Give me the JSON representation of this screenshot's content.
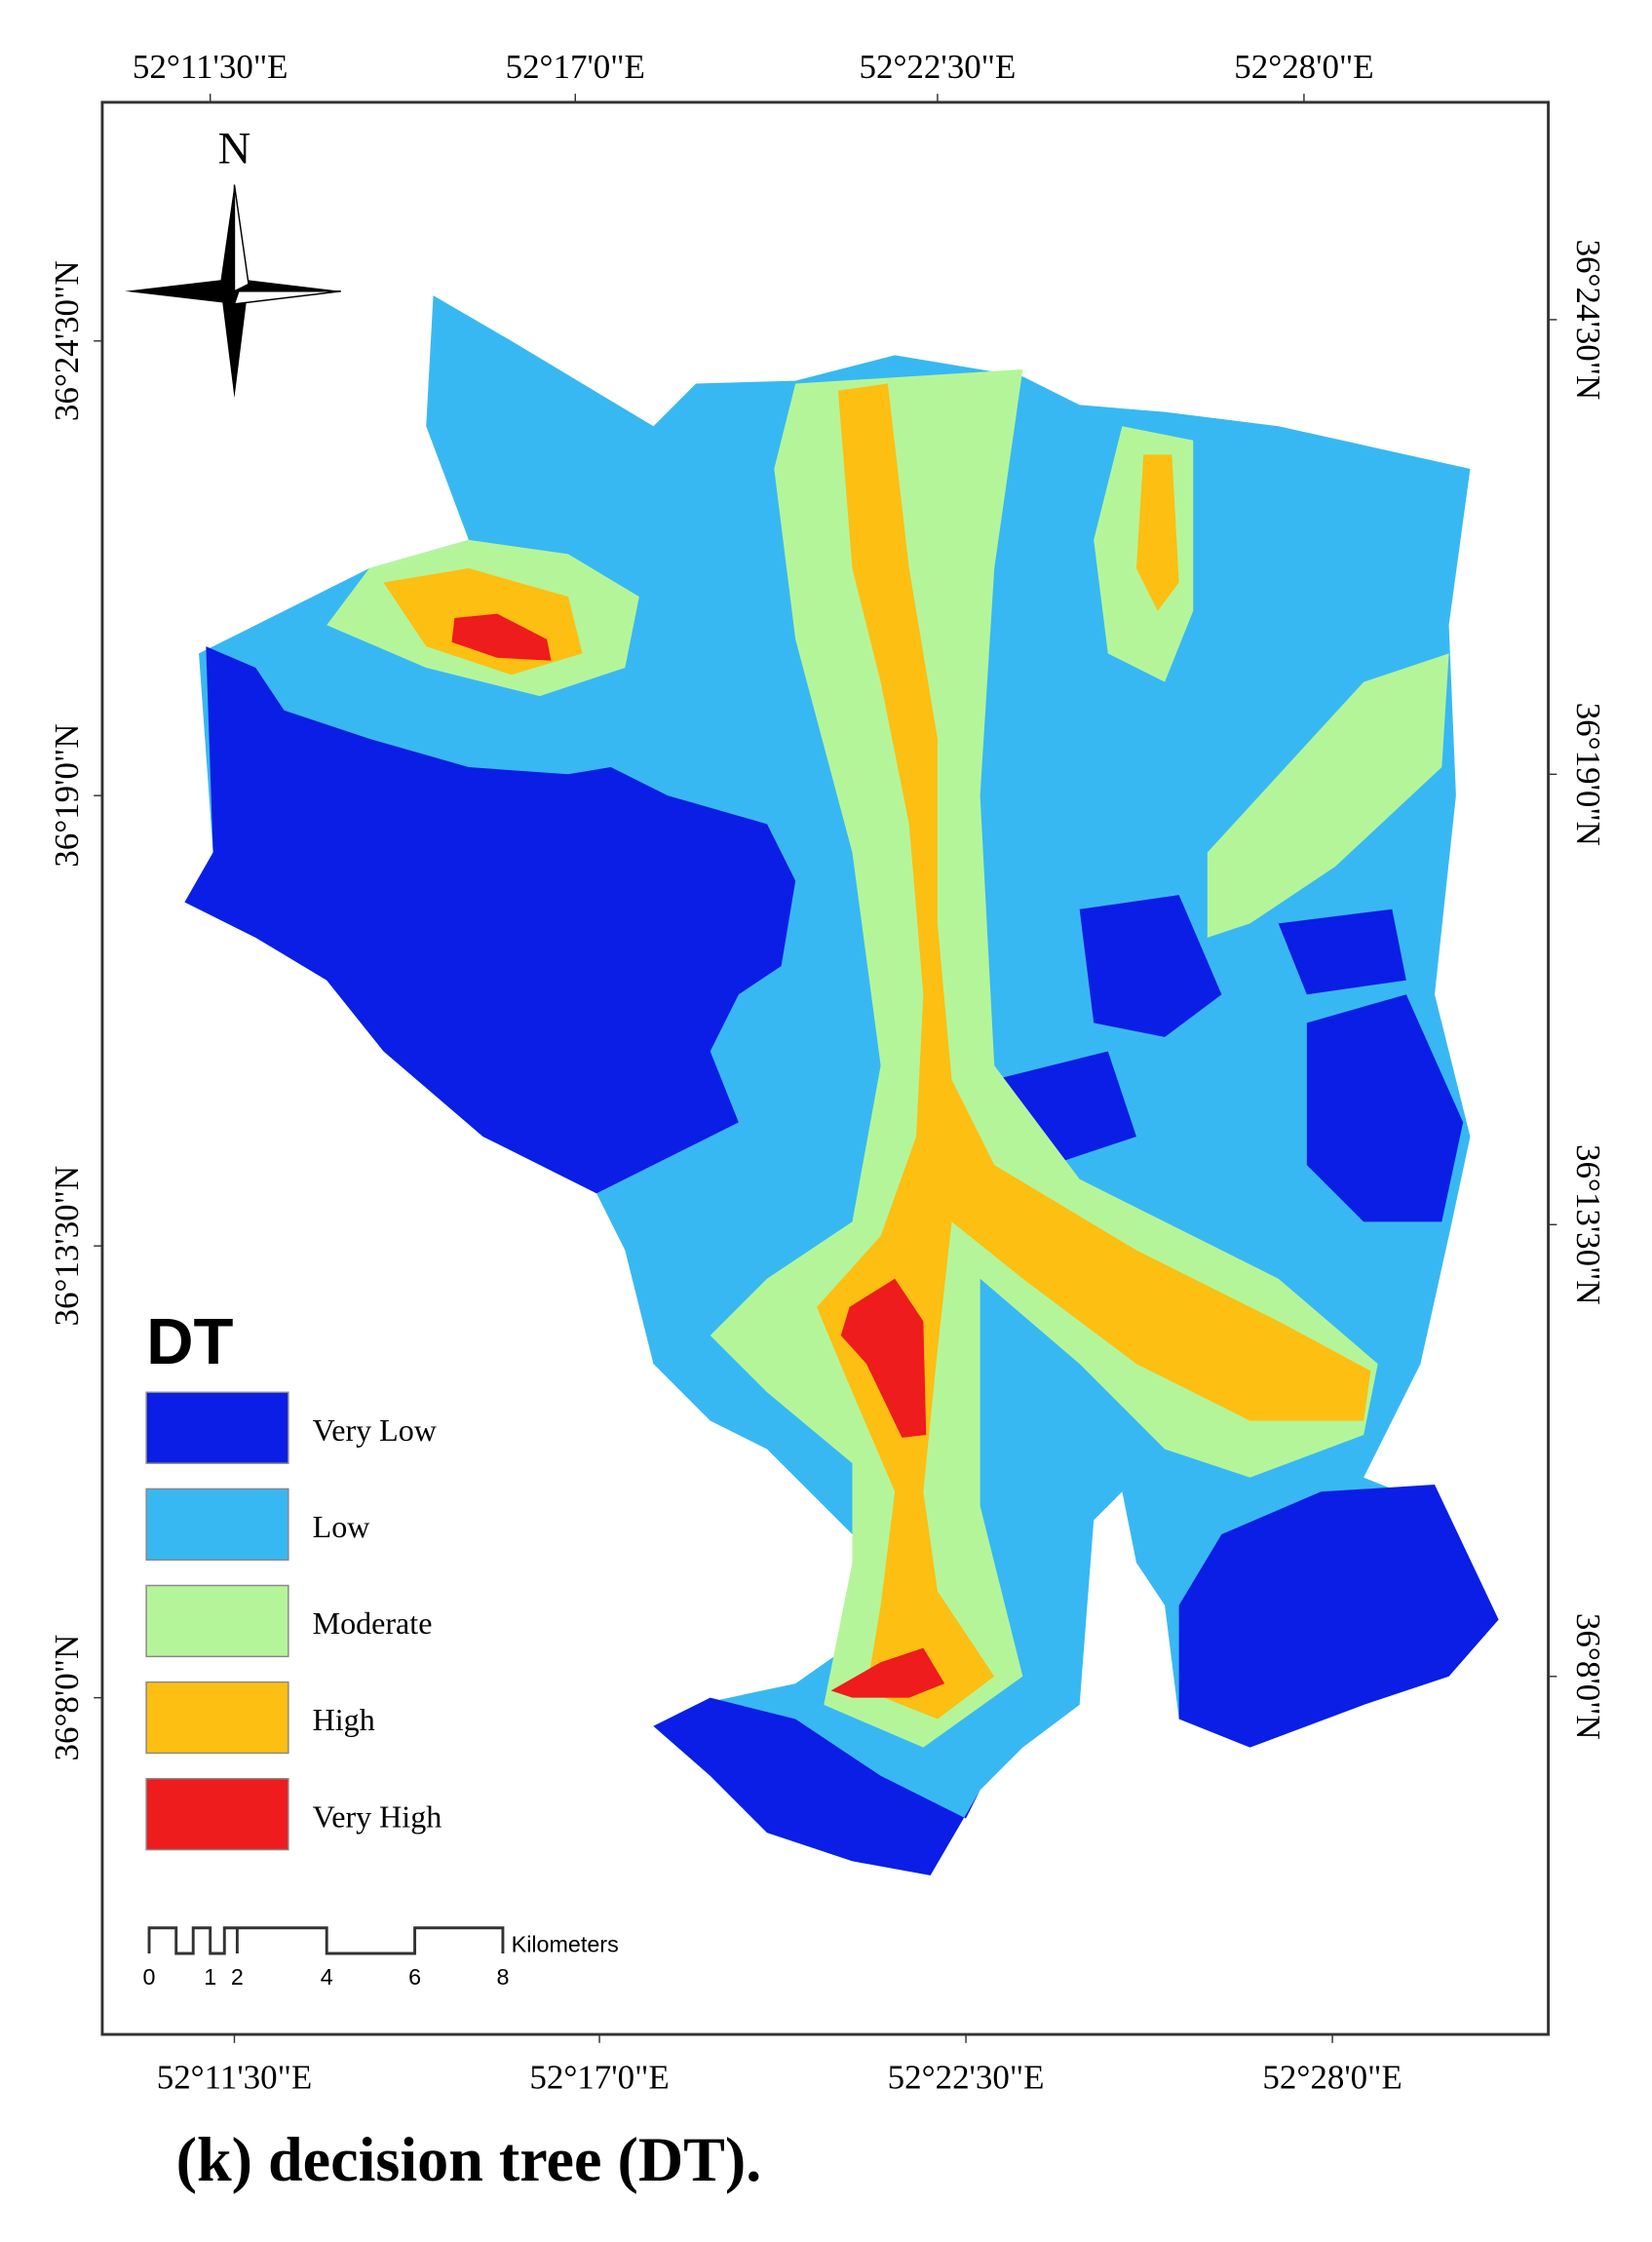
{
  "map": {
    "caption": "(k) decision tree (DT).",
    "north": "N",
    "top_ticks": [
      "52°11'30\"E",
      "52°17'0\"E",
      "52°22'30\"E",
      "52°28'0\"E"
    ],
    "bottom_ticks": [
      "52°11'30\"E",
      "52°17'0\"E",
      "52°22'30\"E",
      "52°28'0\"E"
    ],
    "left_ticks": [
      "36°24'30\"N",
      "36°19'0\"N",
      "36°13'30\"N",
      "36°8'0\"N"
    ],
    "right_ticks": [
      "36°24'30\"N",
      "36°19'0\"N",
      "36°13'30\"N",
      "36°8'0\"N"
    ],
    "legend": {
      "title": "DT",
      "items": [
        {
          "label": "Very Low",
          "color": "#0a1ee6"
        },
        {
          "label": "Low",
          "color": "#38b8f2"
        },
        {
          "label": "Moderate",
          "color": "#b5f59a"
        },
        {
          "label": "High",
          "color": "#fcbf12"
        },
        {
          "label": "Very High",
          "color": "#ee1c1c"
        }
      ]
    },
    "scale_bar": {
      "labels": [
        0,
        1,
        2,
        4,
        6,
        8
      ],
      "unit": "Kilometers"
    }
  }
}
